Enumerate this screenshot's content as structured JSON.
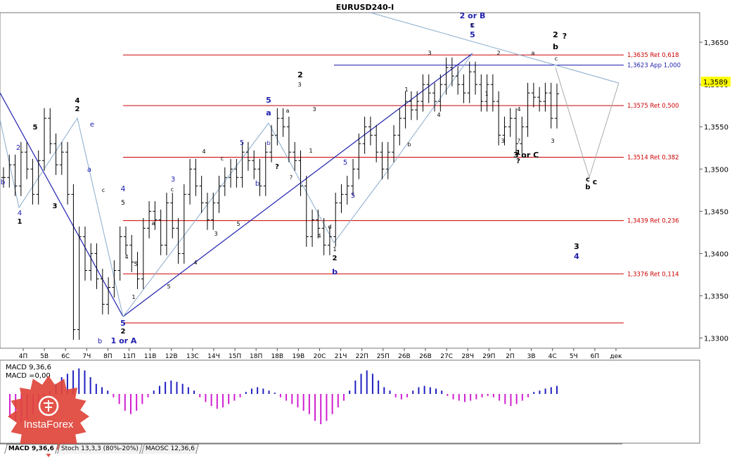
{
  "chart_data": [
    {
      "type": "line",
      "title": "EURUSD240-I",
      "xlabel": "",
      "ylabel": "",
      "ylim": [
        1.3288,
        1.3685
      ],
      "y_ticks": [
        "1,3650",
        "1,3600",
        "1,3550",
        "1,3500",
        "1,3450",
        "1,3400",
        "1,3350",
        "1,3300"
      ],
      "x_ticks": [
        "4П",
        "5В",
        "6С",
        "7Ч",
        "8П",
        "11П",
        "11В",
        "12В",
        "13С",
        "14Ч",
        "15П",
        "18П",
        "18В",
        "19В",
        "20С",
        "21Ч",
        "22П",
        "25П",
        "26В",
        "26В",
        "27С",
        "28Ч",
        "29П",
        "2П",
        "3В",
        "4С",
        "5Ч",
        "6П",
        "дек"
      ],
      "current_price": "1,3589",
      "grid": false,
      "levels": [
        {
          "label": "1,3635 Ret 0,618",
          "value": 1.3635,
          "color": "#cc0000"
        },
        {
          "label": "1,3623 App 1,000",
          "value": 1.3623,
          "color": "#2020b0"
        },
        {
          "label": "1,3575 Ret 0,500",
          "value": 1.3575,
          "color": "#cc0000"
        },
        {
          "label": "1,3514 Ret 0,382",
          "value": 1.3514,
          "color": "#cc0000"
        },
        {
          "label": "1,3439 Ret 0,236",
          "value": 1.3439,
          "color": "#cc0000"
        },
        {
          "label": "1,3376 Ret 0,114",
          "value": 1.3376,
          "color": "#cc0000"
        },
        {
          "label": "",
          "value": 1.3318,
          "color": "#cc0000"
        }
      ],
      "series": [
        {
          "values": [
            1.349,
            1.3505,
            1.348,
            1.352,
            1.35,
            1.347,
            1.351,
            1.356,
            1.353,
            1.3505,
            1.352,
            1.347,
            1.331,
            1.342,
            1.338,
            1.34,
            1.337,
            1.334,
            1.336,
            1.338,
            1.342,
            1.341,
            1.339,
            1.337,
            1.343,
            1.345,
            1.344,
            1.341,
            1.346,
            1.343,
            1.34,
            1.347,
            1.35,
            1.348,
            1.346,
            1.344,
            1.346,
            1.348,
            1.349,
            1.35,
            1.349,
            1.352,
            1.351,
            1.35,
            1.348,
            1.352,
            1.354,
            1.356,
            1.355,
            1.352,
            1.351,
            1.348,
            1.342,
            1.344,
            1.343,
            1.341,
            1.342,
            1.346,
            1.347,
            1.348,
            1.35,
            1.353,
            1.355,
            1.354,
            1.352,
            1.35,
            1.352,
            1.354,
            1.356,
            1.358,
            1.357,
            1.358,
            1.36,
            1.359,
            1.358,
            1.36,
            1.362,
            1.361,
            1.36,
            1.359,
            1.3615,
            1.36,
            1.358,
            1.36,
            1.358,
            1.354,
            1.355,
            1.356,
            1.353,
            1.355,
            1.359,
            1.3585,
            1.358,
            1.359,
            1.356,
            1.3589
          ]
        }
      ],
      "annotations": [
        "2 or B",
        "c",
        "5",
        "2",
        "?",
        "b",
        "3",
        "2",
        "a",
        "c",
        "1",
        "1",
        "4",
        "b",
        "5",
        "2",
        "3",
        "3",
        "5",
        "a",
        "a",
        "1",
        "b",
        "?",
        "?",
        "1",
        "?",
        "3 or C",
        "3",
        "4",
        "c",
        "b",
        "c",
        "3",
        "?",
        "4",
        "3",
        "b",
        "1 or A",
        "5",
        "2",
        "1",
        "4",
        "5",
        "3",
        "c",
        "a",
        "5",
        "5",
        "4",
        "4",
        "1",
        "b",
        "2",
        "5",
        "3",
        "4",
        "2",
        "e",
        "a",
        "c",
        "b",
        "4",
        "3",
        "c",
        "5",
        "b",
        "5",
        "4",
        "2",
        "1",
        "4",
        "d",
        "5",
        "5"
      ]
    },
    {
      "type": "bar",
      "title": "MACD 9,36,6",
      "subtitle": "MACD =0,00",
      "values": [
        -0.0035,
        -0.004,
        -0.0042,
        -0.0038,
        -0.003,
        -0.002,
        -0.001,
        0.0005,
        0.0015,
        0.0025,
        0.003,
        0.0035,
        0.0038,
        0.0035,
        0.0025,
        0.0015,
        0.001,
        0.0005,
        -0.0005,
        -0.0015,
        -0.0025,
        -0.003,
        -0.0025,
        -0.0015,
        -0.0005,
        0.0005,
        0.0012,
        0.0018,
        0.002,
        0.0018,
        0.0015,
        0.001,
        0.0005,
        -0.0005,
        -0.0012,
        -0.0018,
        -0.0022,
        -0.002,
        -0.0015,
        -0.001,
        -0.0005,
        0.0003,
        0.0008,
        0.001,
        0.0008,
        0.0005,
        0.0002,
        -0.0005,
        -0.001,
        -0.0015,
        -0.002,
        -0.0025,
        -0.003,
        -0.004,
        -0.0045,
        -0.004,
        -0.003,
        -0.002,
        -0.001,
        0.0005,
        0.002,
        0.003,
        0.0035,
        0.003,
        0.002,
        0.001,
        0.0005,
        -0.0005,
        -0.0008,
        -0.0005,
        0.0005,
        0.001,
        0.0012,
        0.001,
        0.0008,
        0.0005,
        -0.0003,
        -0.0008,
        -0.001,
        -0.0012,
        -0.001,
        -0.0008,
        -0.0005,
        -0.0003,
        -0.0005,
        -0.001,
        -0.0015,
        -0.0018,
        -0.0015,
        -0.001,
        -0.0005,
        0.0003,
        0.0005,
        0.0008,
        0.001,
        0.0012
      ],
      "colors": {
        "positive": "#2020c0",
        "negative": "#d020d0"
      }
    }
  ],
  "tabs": [
    "MACD 9,36,6",
    "Stoch 13,3,3 (80%-20%)",
    "MAOSC 12,36,6"
  ],
  "logo": {
    "text": "InstaForex"
  }
}
